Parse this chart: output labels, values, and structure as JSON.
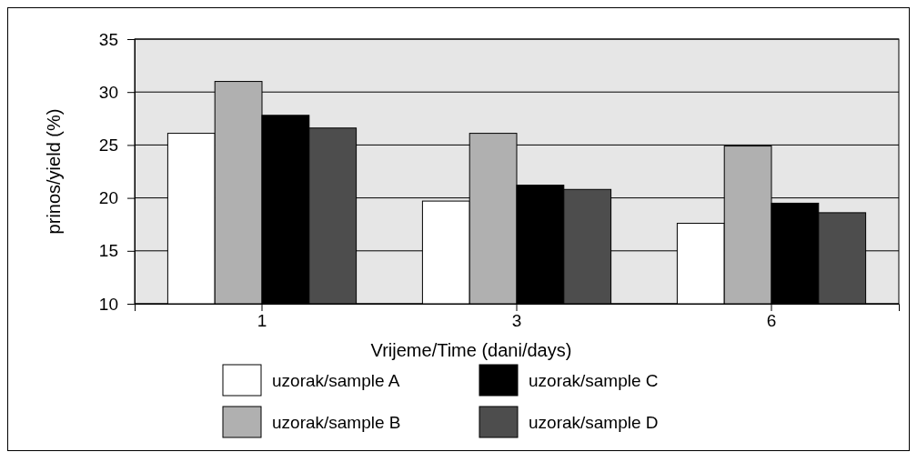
{
  "chart_data": {
    "type": "bar",
    "xlabel": "Vrijeme/Time (dani/days)",
    "ylabel": "prinos/yield  (%)",
    "categories": [
      "1",
      "3",
      "6"
    ],
    "series": [
      {
        "name": "uzorak/sample A",
        "color": "#ffffff",
        "values": [
          26.1,
          19.7,
          17.6
        ]
      },
      {
        "name": "uzorak/sample B",
        "color": "#b0b0b0",
        "values": [
          31.0,
          26.1,
          24.9
        ]
      },
      {
        "name": "uzorak/sample C",
        "color": "#000000",
        "values": [
          27.8,
          21.2,
          19.5
        ]
      },
      {
        "name": "uzorak/sample D",
        "color": "#4d4d4d",
        "values": [
          26.6,
          20.8,
          18.6
        ]
      }
    ],
    "ylim": [
      10,
      35
    ],
    "yticks": [
      10,
      15,
      20,
      25,
      30,
      35
    ],
    "grid": "y",
    "legend": "bottom"
  }
}
